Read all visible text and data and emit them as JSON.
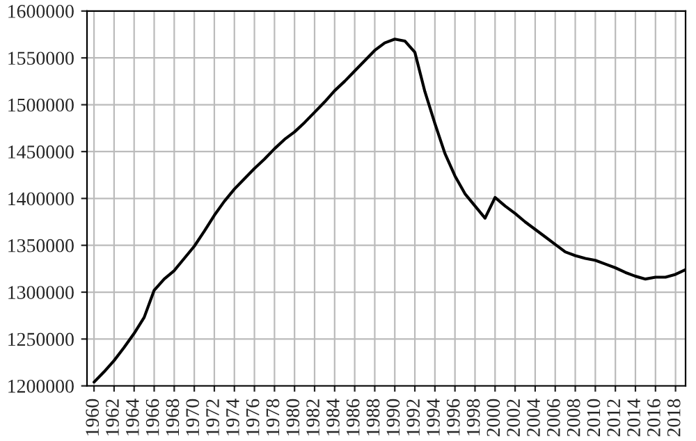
{
  "chart_data": {
    "type": "line",
    "x": [
      1960,
      1961,
      1962,
      1963,
      1964,
      1965,
      1966,
      1967,
      1968,
      1969,
      1970,
      1971,
      1972,
      1973,
      1974,
      1975,
      1976,
      1977,
      1978,
      1979,
      1980,
      1981,
      1982,
      1983,
      1984,
      1985,
      1986,
      1987,
      1988,
      1989,
      1990,
      1991,
      1992,
      1993,
      1994,
      1995,
      1996,
      1997,
      1998,
      1999,
      2000,
      2001,
      2002,
      2003,
      2004,
      2005,
      2006,
      2007,
      2008,
      2009,
      2010,
      2011,
      2012,
      2013,
      2014,
      2015,
      2016,
      2017,
      2018,
      2019
    ],
    "series": [
      {
        "color": "#000000",
        "values": [
          1204000,
          1215000,
          1227000,
          1241000,
          1256000,
          1273000,
          1302000,
          1314000,
          1323000,
          1336000,
          1349000,
          1365000,
          1382000,
          1397000,
          1410000,
          1421000,
          1432000,
          1442000,
          1453000,
          1463000,
          1471000,
          1481000,
          1492000,
          1503000,
          1515000,
          1525000,
          1536000,
          1547000,
          1558000,
          1566000,
          1570000,
          1568000,
          1556000,
          1514000,
          1480000,
          1448000,
          1424000,
          1405000,
          1392000,
          1379000,
          1401000,
          1392000,
          1384000,
          1375000,
          1367000,
          1359000,
          1351000,
          1343000,
          1339000,
          1336000,
          1334000,
          1330000,
          1326000,
          1321000,
          1317000,
          1314000,
          1316000,
          1316000,
          1319000,
          1324000
        ]
      }
    ],
    "xlim": [
      1959.3,
      2019
    ],
    "xticks": [
      1960,
      1962,
      1964,
      1966,
      1968,
      1970,
      1972,
      1974,
      1976,
      1978,
      1980,
      1982,
      1984,
      1986,
      1988,
      1990,
      1992,
      1994,
      1996,
      1998,
      2000,
      2002,
      2004,
      2006,
      2008,
      2010,
      2012,
      2014,
      2016,
      2018
    ],
    "ylim": [
      1200000,
      1600000
    ],
    "yticks": [
      1200000,
      1250000,
      1300000,
      1350000,
      1400000,
      1450000,
      1500000,
      1550000,
      1600000
    ],
    "grid": true,
    "legend": false,
    "marker": "none",
    "line_style": "solid"
  }
}
